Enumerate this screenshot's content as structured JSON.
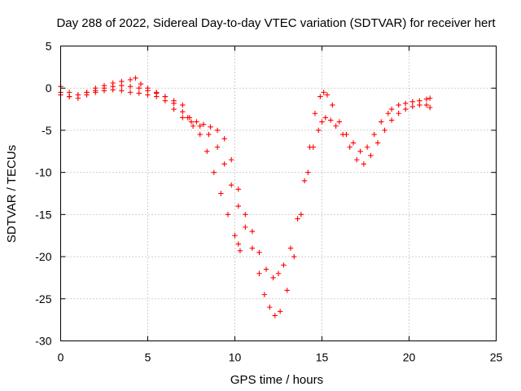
{
  "chart_data": {
    "type": "scatter",
    "title": "Day 288 of 2022, Sidereal Day-to-day VTEC variation (SDTVAR) for receiver hert",
    "xlabel": "GPS time / hours",
    "ylabel": "SDTVAR / TECUs",
    "xlim": [
      0,
      25
    ],
    "ylim": [
      -30,
      5
    ],
    "xticks": [
      0,
      5,
      10,
      15,
      20,
      25
    ],
    "yticks": [
      5,
      0,
      -5,
      -10,
      -15,
      -20,
      -25,
      -30
    ],
    "grid": true,
    "marker": "plus",
    "color": "#ff0000",
    "series": [
      {
        "x": [
          0.0,
          0.5,
          1.0,
          1.5,
          2.0,
          2.5,
          3.0,
          3.5,
          4.0,
          4.3,
          4.6,
          5.0,
          5.5,
          6.0,
          6.5,
          7.0,
          7.3,
          7.6,
          8.0,
          8.4,
          8.8,
          9.2,
          9.6,
          10.0,
          10.2,
          10.3
        ],
        "y": [
          0.2,
          -0.5,
          -0.8,
          -0.5,
          0.0,
          0.3,
          0.6,
          0.8,
          1.0,
          1.2,
          0.5,
          0.0,
          -0.5,
          -1.0,
          -1.5,
          -2.0,
          -3.5,
          -4.5,
          -5.5,
          -7.5,
          -10.0,
          -12.5,
          -15.0,
          -17.5,
          -18.5,
          -19.3
        ]
      },
      {
        "x": [
          0.0,
          0.5,
          1.0,
          1.5,
          2.0,
          2.5,
          3.0,
          3.5,
          4.0,
          4.5,
          5.0,
          5.5,
          6.0,
          6.5,
          7.0,
          7.5,
          8.0,
          8.5,
          9.0,
          9.4,
          9.8,
          10.2,
          10.6,
          11.0,
          11.4,
          11.7,
          12.0,
          12.3,
          12.6,
          13.0,
          13.4,
          13.8,
          14.2,
          14.5,
          14.8,
          15.0,
          15.2,
          15.5,
          15.8,
          16.2,
          16.6,
          17.0,
          17.4,
          17.8,
          18.2,
          18.6,
          19.0,
          19.4,
          19.8,
          20.2,
          20.6,
          21.0,
          21.2
        ],
        "y": [
          -0.5,
          -1.0,
          -1.2,
          -0.8,
          -0.5,
          -0.3,
          -0.2,
          -0.3,
          -0.5,
          -0.6,
          -0.8,
          -1.0,
          -1.5,
          -2.5,
          -3.5,
          -4.0,
          -4.5,
          -5.5,
          -7.0,
          -9.0,
          -11.5,
          -14.0,
          -16.5,
          -19.0,
          -22.0,
          -24.5,
          -26.0,
          -27.0,
          -26.5,
          -24.0,
          -20.0,
          -15.0,
          -10.0,
          -7.0,
          -5.0,
          -4.0,
          -3.5,
          -3.8,
          -4.5,
          -5.5,
          -7.0,
          -8.5,
          -9.0,
          -8.0,
          -6.5,
          -5.0,
          -3.8,
          -3.0,
          -2.5,
          -2.2,
          -2.0,
          -2.0,
          -2.3
        ]
      },
      {
        "x": [
          0.0,
          0.5,
          1.0,
          1.5,
          2.0,
          2.5,
          3.0,
          3.5,
          4.0,
          4.5,
          5.0,
          5.5,
          6.0,
          6.5,
          7.0,
          7.4,
          7.8,
          8.2,
          8.6,
          9.0,
          9.4,
          9.8,
          10.2,
          10.6,
          11.0,
          11.4,
          11.8,
          12.2,
          12.5,
          12.8,
          13.2,
          13.6,
          14.0,
          14.3,
          14.6,
          14.9,
          15.1,
          15.3,
          15.6,
          16.0,
          16.4,
          16.8,
          17.2,
          17.6,
          18.0,
          18.4,
          18.8,
          19.0,
          19.4,
          19.8,
          20.2,
          20.6,
          21.0,
          21.2
        ],
        "y": [
          -0.8,
          -1.0,
          -0.8,
          -0.5,
          -0.3,
          0.0,
          0.2,
          0.3,
          0.2,
          0.0,
          -0.3,
          -0.6,
          -1.0,
          -1.8,
          -2.8,
          -3.5,
          -4.0,
          -4.3,
          -4.6,
          -5.0,
          -6.0,
          -8.5,
          -12.0,
          -15.0,
          -17.0,
          -19.5,
          -21.5,
          -22.5,
          -22.0,
          -21.0,
          -19.0,
          -15.5,
          -11.0,
          -7.0,
          -3.0,
          -1.0,
          -0.5,
          -0.8,
          -2.0,
          -4.0,
          -5.5,
          -6.5,
          -7.5,
          -7.0,
          -5.5,
          -4.0,
          -3.0,
          -2.5,
          -2.0,
          -1.8,
          -1.6,
          -1.5,
          -1.3,
          -1.2
        ]
      }
    ]
  }
}
